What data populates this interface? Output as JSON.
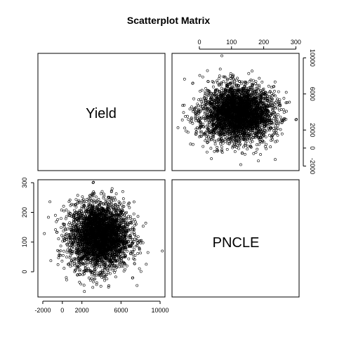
{
  "chart_data": {
    "type": "scatter",
    "title": "Scatterplot Matrix",
    "variables": [
      "Yield",
      "PNCLE"
    ],
    "axes": {
      "Yield": {
        "range": [
          -2500,
          10500
        ],
        "ticks": [
          -2000,
          0,
          2000,
          6000,
          10000
        ],
        "tick_labels": [
          "-2000",
          "0",
          "2000",
          "6000",
          "10000"
        ]
      },
      "PNCLE": {
        "range": [
          -85,
          310
        ],
        "ticks": [
          0,
          100,
          200,
          300
        ],
        "tick_labels": [
          "0",
          "100",
          "200",
          "300"
        ]
      }
    },
    "right_axis_ticks": [
      -2000,
      0,
      2000,
      6000,
      10000
    ],
    "right_axis_labels": [
      "-2000",
      "0",
      "2000",
      "6000",
      "10000"
    ],
    "point_cloud": {
      "n": 3500,
      "Yield": {
        "mean": 3800,
        "sd": 1500
      },
      "PNCLE": {
        "mean": 120,
        "sd": 55
      }
    }
  }
}
